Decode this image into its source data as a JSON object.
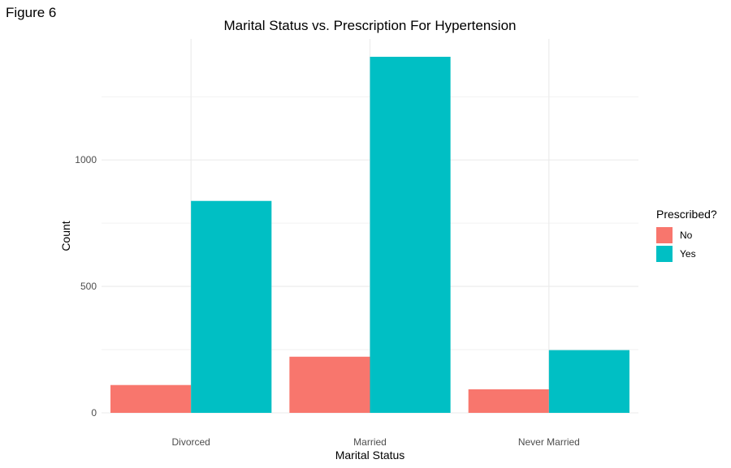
{
  "figure_label": "Figure 6",
  "chart_data": {
    "type": "bar",
    "title": "Marital Status vs. Prescription For Hypertension",
    "xlabel": "Marital Status",
    "ylabel": "Count",
    "categories": [
      "Divorced",
      "Married",
      "Never Married"
    ],
    "series": [
      {
        "name": "No",
        "color": "#F8766D",
        "values": [
          110,
          222,
          93
        ]
      },
      {
        "name": "Yes",
        "color": "#00BFC4",
        "values": [
          838,
          1408,
          248
        ]
      }
    ],
    "ylim": [
      0,
      1408
    ],
    "yticks": [
      0,
      500,
      1000
    ],
    "grid": true,
    "legend": {
      "title": "Prescribed?",
      "position": "right"
    }
  }
}
